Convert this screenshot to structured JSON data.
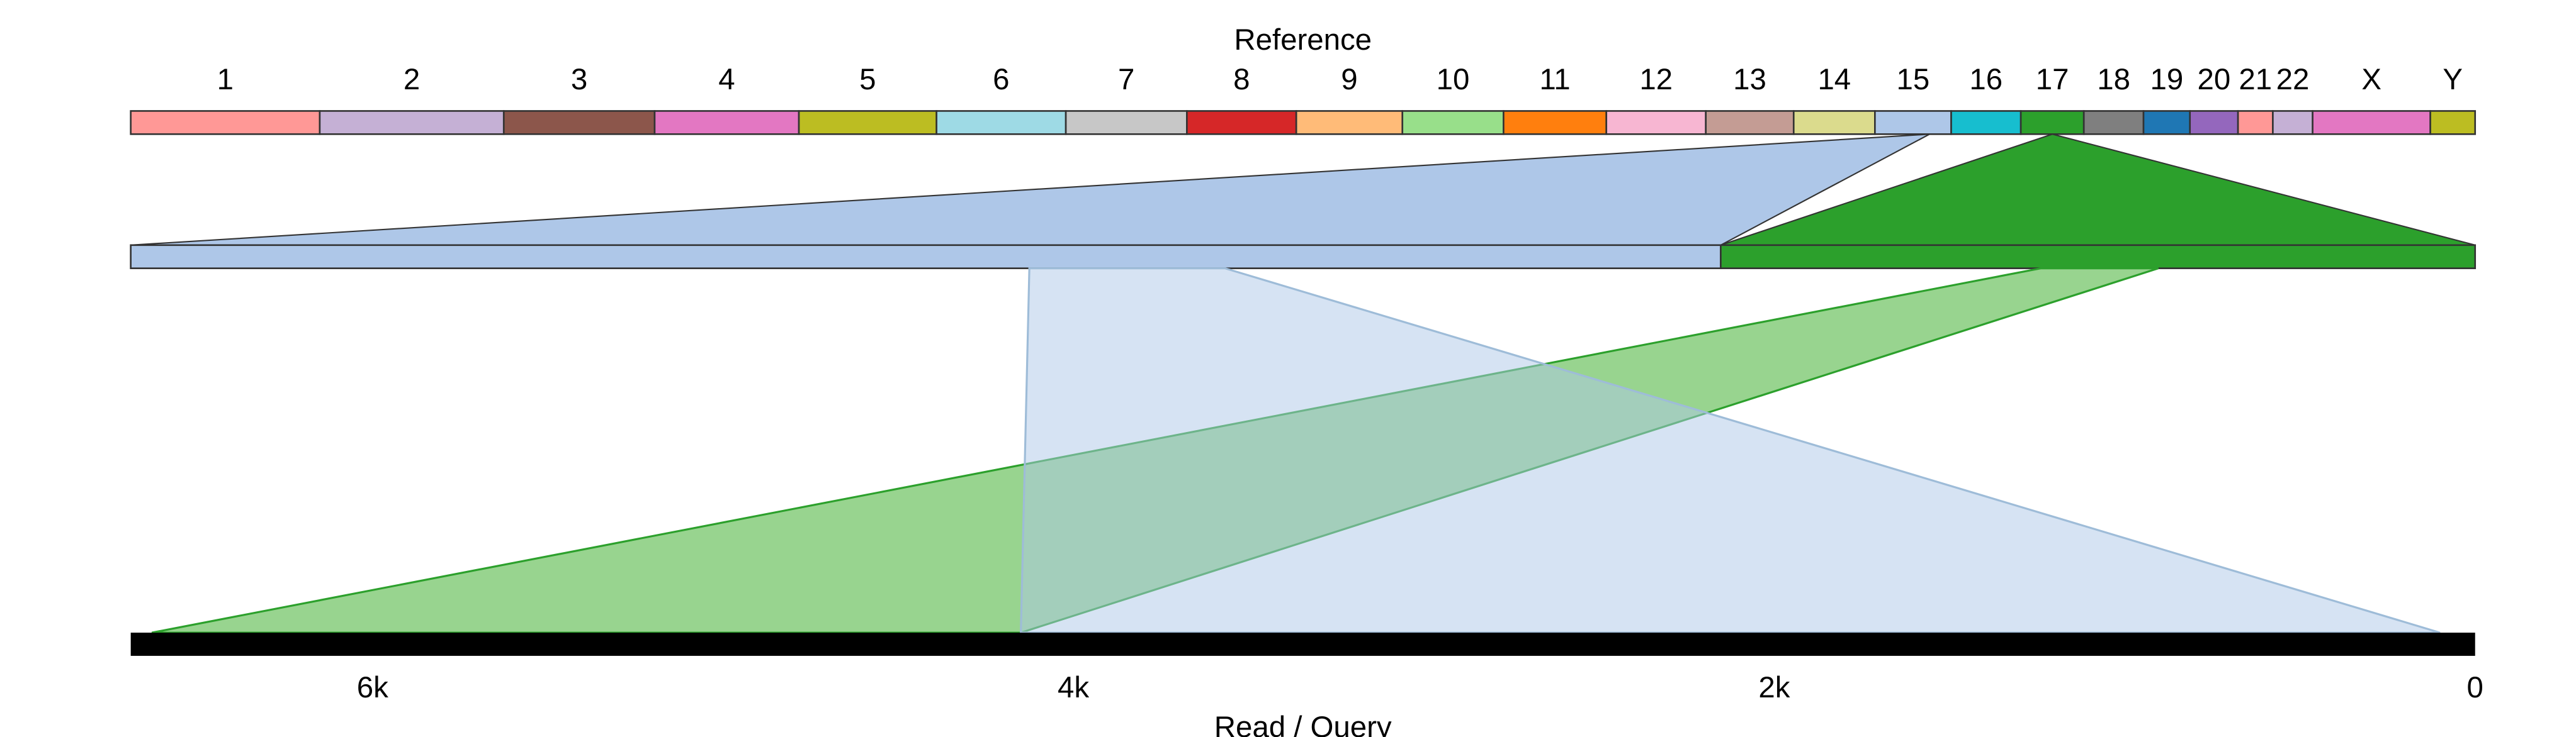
{
  "title": "Reference",
  "xlabel": "Read / Query",
  "chromosomes": [
    {
      "label": "1",
      "color": "#ff9896"
    },
    {
      "label": "2",
      "color": "#c5b0d5"
    },
    {
      "label": "3",
      "color": "#8c564b"
    },
    {
      "label": "4",
      "color": "#e377c2"
    },
    {
      "label": "5",
      "color": "#bcbd22"
    },
    {
      "label": "6",
      "color": "#9edae5"
    },
    {
      "label": "7",
      "color": "#c7c7c7"
    },
    {
      "label": "8",
      "color": "#d62728"
    },
    {
      "label": "9",
      "color": "#ffbb78"
    },
    {
      "label": "10",
      "color": "#98df8a"
    },
    {
      "label": "11",
      "color": "#ff7f0e"
    },
    {
      "label": "12",
      "color": "#f7b6d2"
    },
    {
      "label": "13",
      "color": "#c49c94"
    },
    {
      "label": "14",
      "color": "#dbdb8d"
    },
    {
      "label": "15",
      "color": "#aec7e8"
    },
    {
      "label": "16",
      "color": "#17becf"
    },
    {
      "label": "17",
      "color": "#2ca02c"
    },
    {
      "label": "18",
      "color": "#7f7f7f"
    },
    {
      "label": "19",
      "color": "#1f77b4"
    },
    {
      "label": "20",
      "color": "#9467bd"
    },
    {
      "label": "21",
      "color": "#ff9896"
    },
    {
      "label": "22",
      "color": "#c5b0d5"
    },
    {
      "label": "X",
      "color": "#e377c2"
    },
    {
      "label": "Y",
      "color": "#bcbd22"
    }
  ],
  "read_axis": {
    "ticks": [
      {
        "value": 6000,
        "label": "6k"
      },
      {
        "value": 4000,
        "label": "4k"
      },
      {
        "value": 2000,
        "label": "2k"
      },
      {
        "value": 0,
        "label": "0"
      }
    ],
    "direction": "reversed",
    "read_length": 6690
  },
  "alignments": [
    {
      "chromosome": "15",
      "color": "#aec7e8",
      "stroke": "#9ebcd8",
      "read_start": 100,
      "read_end": 4150
    },
    {
      "chromosome": "17",
      "color": "#2ca02c",
      "fill_light": "#98d48f",
      "stroke": "#2ca02c",
      "read_start": 4150,
      "read_end": 6630
    }
  ]
}
